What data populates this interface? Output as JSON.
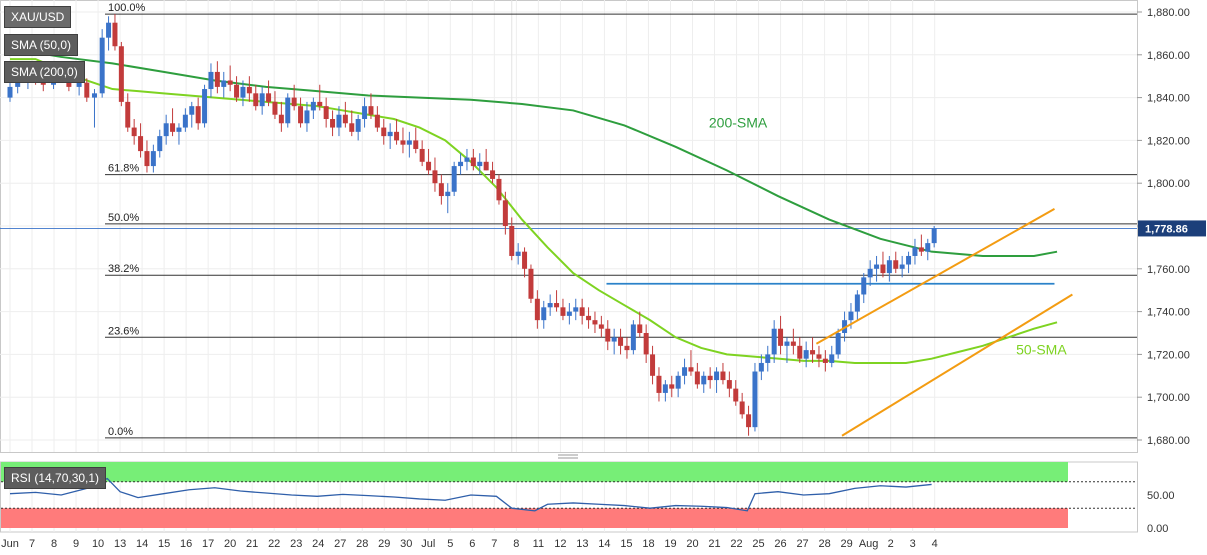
{
  "chart_data": {
    "type": "candlestick",
    "symbol": "XAU/USD",
    "colors": {
      "up": "#3a73c9",
      "down": "#c23b3b",
      "sma50": "#7ed321",
      "sma200": "#2e9e3e",
      "channel": "#f39c12",
      "support": "#2b82c9",
      "rsi_overbought": "#77ee77",
      "rsi_oversold": "#ff7b7b",
      "rsi_line": "#2f5faa",
      "price_tag_bg": "#1c3f7a"
    },
    "ylim": [
      1676,
      1883
    ],
    "price_axis_ticks": [
      "1,880.00",
      "1,860.00",
      "1,840.00",
      "1,820.00",
      "1,800.00",
      "1,780.00",
      "1,760.00",
      "1,740.00",
      "1,720.00",
      "1,700.00",
      "1,680.00"
    ],
    "price_axis_values": [
      1880,
      1860,
      1840,
      1820,
      1800,
      1780,
      1760,
      1740,
      1720,
      1700,
      1680
    ],
    "last_price": 1778.86,
    "last_price_label": "1,778.86",
    "x_ticks": [
      "Jun",
      "7",
      "8",
      "9",
      "10",
      "13",
      "14",
      "15",
      "16",
      "17",
      "20",
      "21",
      "22",
      "23",
      "24",
      "27",
      "28",
      "29",
      "30",
      "Jul",
      "5",
      "6",
      "7",
      "8",
      "11",
      "12",
      "13",
      "14",
      "15",
      "18",
      "19",
      "20",
      "21",
      "22",
      "25",
      "26",
      "27",
      "28",
      "29",
      "Aug",
      "2",
      "3",
      "4"
    ],
    "fibonacci": [
      {
        "label": "100.0%",
        "price": 1879
      },
      {
        "label": "61.8%",
        "price": 1804
      },
      {
        "label": "50.0%",
        "price": 1781
      },
      {
        "label": "38.2%",
        "price": 1757
      },
      {
        "label": "23.6%",
        "price": 1728
      },
      {
        "label": "0.0%",
        "price": 1681
      }
    ],
    "support_level": {
      "price": 1753,
      "from_day": 23.3,
      "to_day": 40.8
    },
    "channel": {
      "upper": {
        "from": [
          31.5,
          1725
        ],
        "to": [
          40.8,
          1788
        ]
      },
      "lower": {
        "from": [
          32.5,
          1682
        ],
        "to": [
          41.5,
          1748
        ]
      }
    },
    "annotations": [
      {
        "text": "200-SMA",
        "day": 27.3,
        "price": 1826
      },
      {
        "text": "50-SMA",
        "day": 39.3,
        "price": 1720
      }
    ],
    "sma200": [
      [
        0,
        1863
      ],
      [
        2,
        1859
      ],
      [
        4,
        1856
      ],
      [
        6,
        1852
      ],
      [
        8,
        1848
      ],
      [
        10,
        1845
      ],
      [
        12,
        1843
      ],
      [
        14,
        1841
      ],
      [
        16,
        1840
      ],
      [
        18,
        1839
      ],
      [
        20,
        1837
      ],
      [
        22,
        1834
      ],
      [
        24,
        1827
      ],
      [
        26,
        1817
      ],
      [
        28,
        1806
      ],
      [
        30,
        1794
      ],
      [
        32,
        1783
      ],
      [
        34,
        1774
      ],
      [
        36,
        1768
      ],
      [
        38,
        1766
      ],
      [
        40,
        1766
      ],
      [
        40.9,
        1768
      ]
    ],
    "sma50": [
      [
        0,
        1858
      ],
      [
        1,
        1858
      ],
      [
        2,
        1853
      ],
      [
        3,
        1848
      ],
      [
        4,
        1844
      ],
      [
        5,
        1843
      ],
      [
        6,
        1842
      ],
      [
        7,
        1841
      ],
      [
        8,
        1840
      ],
      [
        9,
        1839
      ],
      [
        10,
        1838
      ],
      [
        11,
        1837
      ],
      [
        12,
        1836
      ],
      [
        13,
        1834
      ],
      [
        14,
        1832
      ],
      [
        15,
        1830
      ],
      [
        16,
        1826
      ],
      [
        17,
        1820
      ],
      [
        18,
        1810
      ],
      [
        19,
        1798
      ],
      [
        20,
        1783
      ],
      [
        21,
        1770
      ],
      [
        22,
        1758
      ],
      [
        23,
        1750
      ],
      [
        24,
        1743
      ],
      [
        25,
        1736
      ],
      [
        26,
        1728
      ],
      [
        27,
        1723
      ],
      [
        28,
        1720
      ],
      [
        29,
        1719
      ],
      [
        30,
        1718
      ],
      [
        31,
        1717
      ],
      [
        32,
        1717
      ],
      [
        33,
        1716
      ],
      [
        34,
        1716
      ],
      [
        35,
        1716
      ],
      [
        36,
        1718
      ],
      [
        37,
        1721
      ],
      [
        38,
        1724
      ],
      [
        39,
        1728
      ],
      [
        40,
        1732
      ],
      [
        40.9,
        1735
      ]
    ],
    "candles": [
      [
        0,
        1840,
        1848,
        1838,
        1845
      ],
      [
        0.3,
        1845,
        1850,
        1842,
        1848
      ],
      [
        0.7,
        1848,
        1852,
        1844,
        1850
      ],
      [
        1.0,
        1850,
        1855,
        1846,
        1849
      ],
      [
        1.3,
        1849,
        1852,
        1843,
        1846
      ],
      [
        1.7,
        1846,
        1853,
        1844,
        1851
      ],
      [
        2.0,
        1851,
        1856,
        1847,
        1848
      ],
      [
        2.3,
        1848,
        1851,
        1843,
        1845
      ],
      [
        2.7,
        1845,
        1850,
        1841,
        1847
      ],
      [
        3.0,
        1847,
        1849,
        1838,
        1840
      ],
      [
        3.3,
        1840,
        1844,
        1826,
        1842
      ],
      [
        3.6,
        1842,
        1872,
        1840,
        1868
      ],
      [
        3.85,
        1868,
        1878,
        1862,
        1875
      ],
      [
        4.1,
        1875,
        1879,
        1862,
        1864
      ],
      [
        4.35,
        1864,
        1866,
        1836,
        1838
      ],
      [
        4.6,
        1838,
        1842,
        1824,
        1826
      ],
      [
        4.85,
        1826,
        1830,
        1818,
        1822
      ],
      [
        5.1,
        1822,
        1828,
        1812,
        1815
      ],
      [
        5.35,
        1815,
        1820,
        1805,
        1808
      ],
      [
        5.6,
        1808,
        1818,
        1805,
        1815
      ],
      [
        5.85,
        1815,
        1825,
        1812,
        1822
      ],
      [
        6.1,
        1822,
        1832,
        1818,
        1828
      ],
      [
        6.35,
        1828,
        1835,
        1822,
        1824
      ],
      [
        6.6,
        1824,
        1828,
        1818,
        1826
      ],
      [
        6.85,
        1826,
        1835,
        1824,
        1832
      ],
      [
        7.1,
        1832,
        1838,
        1826,
        1836
      ],
      [
        7.35,
        1836,
        1840,
        1825,
        1828
      ],
      [
        7.6,
        1828,
        1846,
        1826,
        1844
      ],
      [
        7.85,
        1844,
        1856,
        1840,
        1852
      ],
      [
        8.1,
        1852,
        1857,
        1842,
        1845
      ],
      [
        8.35,
        1845,
        1852,
        1840,
        1848
      ],
      [
        8.6,
        1848,
        1855,
        1843,
        1846
      ],
      [
        8.85,
        1846,
        1850,
        1838,
        1840
      ],
      [
        9.1,
        1840,
        1848,
        1836,
        1845
      ],
      [
        9.35,
        1845,
        1850,
        1838,
        1842
      ],
      [
        9.6,
        1842,
        1846,
        1834,
        1836
      ],
      [
        9.85,
        1836,
        1845,
        1832,
        1842
      ],
      [
        10.1,
        1842,
        1848,
        1836,
        1838
      ],
      [
        10.35,
        1838,
        1843,
        1830,
        1832
      ],
      [
        10.6,
        1832,
        1838,
        1824,
        1828
      ],
      [
        10.85,
        1828,
        1842,
        1826,
        1840
      ],
      [
        11.1,
        1840,
        1846,
        1834,
        1836
      ],
      [
        11.35,
        1836,
        1840,
        1826,
        1828
      ],
      [
        11.6,
        1828,
        1838,
        1824,
        1834
      ],
      [
        11.85,
        1834,
        1840,
        1830,
        1838
      ],
      [
        12.1,
        1838,
        1846,
        1834,
        1836
      ],
      [
        12.35,
        1836,
        1840,
        1826,
        1830
      ],
      [
        12.6,
        1830,
        1834,
        1822,
        1826
      ],
      [
        12.85,
        1826,
        1836,
        1822,
        1832
      ],
      [
        13.1,
        1832,
        1838,
        1826,
        1828
      ],
      [
        13.35,
        1828,
        1834,
        1822,
        1824
      ],
      [
        13.6,
        1824,
        1832,
        1820,
        1830
      ],
      [
        13.85,
        1830,
        1840,
        1826,
        1836
      ],
      [
        14.1,
        1836,
        1842,
        1830,
        1832
      ],
      [
        14.35,
        1832,
        1836,
        1824,
        1826
      ],
      [
        14.6,
        1826,
        1830,
        1818,
        1822
      ],
      [
        14.85,
        1822,
        1828,
        1816,
        1824
      ],
      [
        15.1,
        1824,
        1830,
        1818,
        1820
      ],
      [
        15.35,
        1820,
        1826,
        1814,
        1818
      ],
      [
        15.6,
        1818,
        1824,
        1812,
        1820
      ],
      [
        15.85,
        1820,
        1826,
        1814,
        1816
      ],
      [
        16.1,
        1816,
        1820,
        1808,
        1810
      ],
      [
        16.35,
        1810,
        1816,
        1804,
        1806
      ],
      [
        16.6,
        1806,
        1812,
        1796,
        1800
      ],
      [
        16.85,
        1800,
        1804,
        1790,
        1794
      ],
      [
        17.1,
        1794,
        1800,
        1786,
        1796
      ],
      [
        17.35,
        1796,
        1810,
        1794,
        1808
      ],
      [
        17.6,
        1808,
        1814,
        1804,
        1810
      ],
      [
        17.85,
        1810,
        1816,
        1806,
        1812
      ],
      [
        18.1,
        1812,
        1816,
        1806,
        1808
      ],
      [
        18.35,
        1808,
        1814,
        1804,
        1810
      ],
      [
        18.6,
        1810,
        1816,
        1806,
        1806
      ],
      [
        18.85,
        1806,
        1810,
        1800,
        1802
      ],
      [
        19.1,
        1802,
        1804,
        1790,
        1792
      ],
      [
        19.35,
        1792,
        1796,
        1776,
        1780
      ],
      [
        19.6,
        1780,
        1784,
        1764,
        1766
      ],
      [
        19.85,
        1766,
        1772,
        1762,
        1768
      ],
      [
        20.1,
        1768,
        1770,
        1756,
        1760
      ],
      [
        20.35,
        1760,
        1762,
        1744,
        1746
      ],
      [
        20.6,
        1746,
        1750,
        1732,
        1736
      ],
      [
        20.85,
        1736,
        1745,
        1732,
        1742
      ],
      [
        21.1,
        1742,
        1748,
        1738,
        1744
      ],
      [
        21.35,
        1744,
        1750,
        1740,
        1742
      ],
      [
        21.6,
        1742,
        1746,
        1736,
        1738
      ],
      [
        21.85,
        1738,
        1744,
        1734,
        1740
      ],
      [
        22.1,
        1740,
        1746,
        1736,
        1742
      ],
      [
        22.35,
        1742,
        1746,
        1734,
        1738
      ],
      [
        22.6,
        1738,
        1742,
        1732,
        1736
      ],
      [
        22.85,
        1736,
        1740,
        1730,
        1734
      ],
      [
        23.1,
        1734,
        1738,
        1728,
        1732
      ],
      [
        23.35,
        1732,
        1736,
        1722,
        1726
      ],
      [
        23.6,
        1726,
        1732,
        1720,
        1728
      ],
      [
        23.85,
        1728,
        1732,
        1720,
        1724
      ],
      [
        24.1,
        1724,
        1728,
        1718,
        1722
      ],
      [
        24.35,
        1722,
        1736,
        1720,
        1734
      ],
      [
        24.6,
        1734,
        1740,
        1728,
        1730
      ],
      [
        24.85,
        1730,
        1734,
        1716,
        1720
      ],
      [
        25.1,
        1720,
        1724,
        1706,
        1710
      ],
      [
        25.35,
        1710,
        1714,
        1698,
        1702
      ],
      [
        25.6,
        1702,
        1708,
        1698,
        1706
      ],
      [
        25.85,
        1706,
        1710,
        1700,
        1704
      ],
      [
        26.1,
        1704,
        1712,
        1700,
        1710
      ],
      [
        26.35,
        1710,
        1718,
        1706,
        1714
      ],
      [
        26.6,
        1714,
        1722,
        1710,
        1712
      ],
      [
        26.85,
        1712,
        1716,
        1704,
        1706
      ],
      [
        27.1,
        1706,
        1712,
        1702,
        1710
      ],
      [
        27.35,
        1710,
        1714,
        1704,
        1708
      ],
      [
        27.6,
        1708,
        1714,
        1702,
        1712
      ],
      [
        27.85,
        1712,
        1716,
        1706,
        1708
      ],
      [
        28.1,
        1708,
        1712,
        1700,
        1704
      ],
      [
        28.35,
        1704,
        1708,
        1696,
        1698
      ],
      [
        28.6,
        1698,
        1702,
        1690,
        1692
      ],
      [
        28.85,
        1692,
        1696,
        1682,
        1686
      ],
      [
        29.1,
        1686,
        1716,
        1684,
        1712
      ],
      [
        29.35,
        1712,
        1720,
        1708,
        1716
      ],
      [
        29.6,
        1716,
        1724,
        1712,
        1720
      ],
      [
        29.85,
        1720,
        1736,
        1716,
        1732
      ],
      [
        30.1,
        1732,
        1738,
        1720,
        1724
      ],
      [
        30.35,
        1724,
        1728,
        1716,
        1726
      ],
      [
        30.6,
        1726,
        1732,
        1720,
        1724
      ],
      [
        30.85,
        1724,
        1728,
        1716,
        1718
      ],
      [
        31.1,
        1718,
        1726,
        1714,
        1722
      ],
      [
        31.35,
        1722,
        1728,
        1716,
        1720
      ],
      [
        31.6,
        1720,
        1724,
        1714,
        1718
      ],
      [
        31.85,
        1718,
        1722,
        1712,
        1716
      ],
      [
        32.1,
        1716,
        1724,
        1714,
        1720
      ],
      [
        32.35,
        1720,
        1732,
        1718,
        1730
      ],
      [
        32.6,
        1730,
        1740,
        1726,
        1736
      ],
      [
        32.85,
        1736,
        1744,
        1732,
        1740
      ],
      [
        33.1,
        1740,
        1750,
        1736,
        1748
      ],
      [
        33.35,
        1748,
        1758,
        1744,
        1756
      ],
      [
        33.6,
        1756,
        1764,
        1752,
        1760
      ],
      [
        33.85,
        1760,
        1766,
        1754,
        1762
      ],
      [
        34.1,
        1762,
        1768,
        1756,
        1758
      ],
      [
        34.35,
        1758,
        1766,
        1754,
        1764
      ],
      [
        34.6,
        1764,
        1768,
        1758,
        1760
      ],
      [
        34.85,
        1760,
        1766,
        1756,
        1762
      ],
      [
        35.1,
        1762,
        1768,
        1758,
        1766
      ],
      [
        35.35,
        1766,
        1774,
        1762,
        1770
      ],
      [
        35.6,
        1770,
        1776,
        1766,
        1768
      ],
      [
        35.85,
        1768,
        1774,
        1764,
        1772
      ],
      [
        36.1,
        1772,
        1780,
        1770,
        1779
      ]
    ],
    "rsi_levels": {
      "upper": 70,
      "lower": 30,
      "ticks": [
        "50.00",
        "0.00"
      ]
    },
    "rsi": [
      [
        0,
        52
      ],
      [
        1,
        54
      ],
      [
        2,
        50
      ],
      [
        3,
        60
      ],
      [
        3.8,
        75
      ],
      [
        4.3,
        55
      ],
      [
        5,
        46
      ],
      [
        6,
        52
      ],
      [
        7,
        58
      ],
      [
        8,
        61
      ],
      [
        9,
        56
      ],
      [
        10,
        53
      ],
      [
        11,
        50
      ],
      [
        12,
        48
      ],
      [
        13,
        51
      ],
      [
        14,
        49
      ],
      [
        15,
        47
      ],
      [
        16,
        44
      ],
      [
        17,
        42
      ],
      [
        18,
        50
      ],
      [
        19,
        48
      ],
      [
        19.6,
        30
      ],
      [
        20.5,
        26
      ],
      [
        21,
        36
      ],
      [
        22,
        38
      ],
      [
        23,
        36
      ],
      [
        24,
        34
      ],
      [
        25,
        30
      ],
      [
        26,
        34
      ],
      [
        27,
        33
      ],
      [
        28,
        31
      ],
      [
        28.8,
        26
      ],
      [
        29.1,
        52
      ],
      [
        30,
        55
      ],
      [
        31,
        50
      ],
      [
        32,
        52
      ],
      [
        33,
        60
      ],
      [
        34,
        64
      ],
      [
        35,
        62
      ],
      [
        36,
        66
      ]
    ]
  },
  "legend": {
    "symbol": "XAU/USD",
    "sma50": "SMA (50,0)",
    "sma200": "SMA (200,0)",
    "rsi": "RSI (14,70,30,1)"
  }
}
